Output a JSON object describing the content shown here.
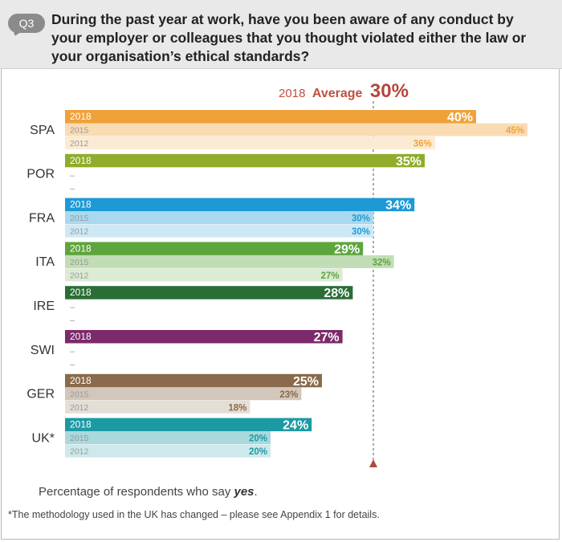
{
  "header": {
    "badge": "Q3",
    "question": "During the past year at work, have you been aware of any conduct by your employer or colleagues that you thought violated either the law or your organisation’s ethical standards?"
  },
  "average": {
    "year_label": "2018",
    "word": "Average",
    "value": 30,
    "value_label": "30%"
  },
  "colors": {
    "SPA": "#f0a23a",
    "POR": "#8fad2a",
    "FRA": "#1d9ad6",
    "ITA": "#5da53c",
    "IRE": "#2a6e36",
    "SWI": "#7c2a6b",
    "GER": "#8a6a4b",
    "UK*": "#1c9aa4",
    "average_line": "#b5473a"
  },
  "chart_data": {
    "type": "bar",
    "orientation": "horizontal",
    "unit": "%",
    "series_years": [
      "2018",
      "2015",
      "2012"
    ],
    "average_2018": 30,
    "missing_marker": "–",
    "countries": [
      {
        "name": "SPA",
        "rows": [
          {
            "year": "2018",
            "value": 40,
            "label": "40%"
          },
          {
            "year": "2015",
            "value": 45,
            "label": "45%"
          },
          {
            "year": "2012",
            "value": 36,
            "label": "36%"
          }
        ]
      },
      {
        "name": "POR",
        "rows": [
          {
            "year": "2018",
            "value": 35,
            "label": "35%"
          },
          {
            "year": "2015",
            "value": null,
            "label": "–"
          },
          {
            "year": "2012",
            "value": null,
            "label": "–"
          }
        ]
      },
      {
        "name": "FRA",
        "rows": [
          {
            "year": "2018",
            "value": 34,
            "label": "34%"
          },
          {
            "year": "2015",
            "value": 30,
            "label": "30%"
          },
          {
            "year": "2012",
            "value": 30,
            "label": "30%"
          }
        ]
      },
      {
        "name": "ITA",
        "rows": [
          {
            "year": "2018",
            "value": 29,
            "label": "29%"
          },
          {
            "year": "2015",
            "value": 32,
            "label": "32%"
          },
          {
            "year": "2012",
            "value": 27,
            "label": "27%"
          }
        ]
      },
      {
        "name": "IRE",
        "rows": [
          {
            "year": "2018",
            "value": 28,
            "label": "28%"
          },
          {
            "year": "2015",
            "value": null,
            "label": "–"
          },
          {
            "year": "2012",
            "value": null,
            "label": "–"
          }
        ]
      },
      {
        "name": "SWI",
        "rows": [
          {
            "year": "2018",
            "value": 27,
            "label": "27%"
          },
          {
            "year": "2015",
            "value": null,
            "label": "–"
          },
          {
            "year": "2012",
            "value": null,
            "label": "–"
          }
        ]
      },
      {
        "name": "GER",
        "rows": [
          {
            "year": "2018",
            "value": 25,
            "label": "25%"
          },
          {
            "year": "2015",
            "value": 23,
            "label": "23%"
          },
          {
            "year": "2012",
            "value": 18,
            "label": "18%"
          }
        ]
      },
      {
        "name": "UK*",
        "rows": [
          {
            "year": "2018",
            "value": 24,
            "label": "24%"
          },
          {
            "year": "2015",
            "value": 20,
            "label": "20%"
          },
          {
            "year": "2012",
            "value": 20,
            "label": "20%"
          }
        ]
      }
    ]
  },
  "footer": {
    "note_prefix": "Percentage of respondents who say ",
    "note_emph": "yes",
    "note_suffix": ".",
    "methodology": "*The methodology used in the UK has changed – please see Appendix 1 for details."
  }
}
